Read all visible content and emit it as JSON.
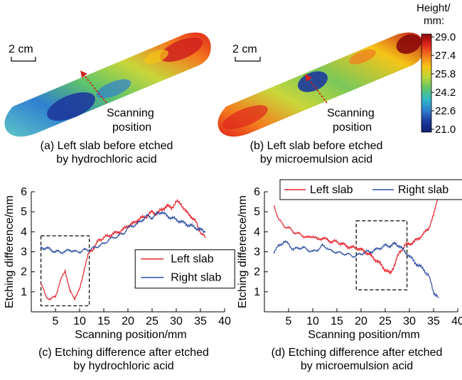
{
  "panels_top": {
    "a": {
      "scale_bar": "2 cm",
      "arrow_label_1": "Scanning",
      "arrow_label_2": "position",
      "caption_1": "(a) Left slab before etched",
      "caption_2": "by hydrochloric acid"
    },
    "b": {
      "scale_bar": "2 cm",
      "arrow_label_1": "Scanning",
      "arrow_label_2": "position",
      "caption_1": "(b) Left slab before etched",
      "caption_2": "by microemulsion acid"
    }
  },
  "colorbar": {
    "title_1": "Height/",
    "title_2": "mm:",
    "ticks": [
      "29.0",
      "27.4",
      "25.8",
      "24.2",
      "22.6",
      "21.0"
    ],
    "colors": [
      "#8b0a0a",
      "#e0261c",
      "#f47a1e",
      "#f5c518",
      "#b7d63a",
      "#5ec46a",
      "#30b6c8",
      "#2f7fd0",
      "#1d3a9c",
      "#0d1f74"
    ]
  },
  "colors": {
    "left_slab": "#e8212a",
    "right_slab": "#2e4fa3"
  },
  "chart_data": [
    {
      "type": "line",
      "caption_1": "(c) Etching difference after etched",
      "caption_2": "by hydrochloric acid",
      "xlabel": "Scanning position/mm",
      "ylabel": "Etching difference/mm",
      "xlim": [
        0,
        40
      ],
      "ylim": [
        0,
        6
      ],
      "xticks": [
        "5",
        "10",
        "15",
        "20",
        "25",
        "30",
        "35",
        "40"
      ],
      "yticks": [
        "1",
        "2",
        "3",
        "4",
        "5",
        "6"
      ],
      "legend_position": "center-right",
      "annotation": "dashed box 2–12 mm",
      "highlight_box": {
        "x": [
          2,
          12
        ],
        "y": [
          0.3,
          3.8
        ]
      },
      "series": [
        {
          "name": "Left slab",
          "x": [
            2,
            3,
            4,
            5,
            6,
            7,
            8,
            9,
            10,
            11,
            12,
            13,
            14,
            15,
            16,
            17,
            18,
            19,
            20,
            21,
            22,
            23,
            24,
            25,
            26,
            27,
            28,
            29,
            30,
            31,
            32,
            33,
            34,
            35,
            36
          ],
          "y": [
            1.4,
            0.8,
            0.6,
            0.8,
            1.5,
            2.1,
            1.0,
            0.7,
            1.1,
            2.2,
            3.0,
            3.2,
            3.6,
            3.7,
            3.8,
            3.9,
            4.0,
            4.1,
            4.3,
            4.4,
            4.6,
            4.7,
            4.8,
            5.0,
            4.9,
            5.1,
            5.3,
            5.2,
            5.5,
            5.4,
            5.0,
            4.8,
            4.5,
            4.0,
            3.7
          ]
        },
        {
          "name": "Right slab",
          "x": [
            2,
            3,
            4,
            5,
            6,
            7,
            8,
            9,
            10,
            11,
            12,
            13,
            14,
            15,
            16,
            17,
            18,
            19,
            20,
            21,
            22,
            23,
            24,
            25,
            26,
            27,
            28,
            29,
            30,
            31,
            32,
            33,
            34,
            35,
            36
          ],
          "y": [
            3.2,
            3.2,
            3.1,
            3.0,
            3.0,
            3.0,
            3.1,
            3.0,
            3.0,
            3.1,
            3.1,
            3.2,
            3.3,
            3.4,
            3.6,
            3.7,
            3.8,
            3.9,
            4.2,
            4.3,
            4.4,
            4.6,
            4.8,
            4.7,
            4.9,
            5.0,
            4.8,
            4.7,
            4.6,
            4.5,
            4.4,
            4.3,
            4.2,
            4.1,
            4.0
          ]
        }
      ]
    },
    {
      "type": "line",
      "caption_1": "(d) Etching difference after etched",
      "caption_2": "by microemulsion acid",
      "xlabel": "Scanning position/mm",
      "ylabel": "Etching difference/mm",
      "xlim": [
        0,
        40
      ],
      "ylim": [
        0,
        6
      ],
      "xticks": [
        "5",
        "10",
        "15",
        "20",
        "25",
        "30",
        "35",
        "40"
      ],
      "yticks": [
        "1",
        "2",
        "3",
        "4",
        "5",
        "6"
      ],
      "legend_position": "top",
      "annotation": "dashed box 19–30 mm",
      "highlight_box": {
        "x": [
          19,
          29.5
        ],
        "y": [
          1.1,
          4.55
        ]
      },
      "series": [
        {
          "name": "Left slab",
          "x": [
            2,
            3,
            4,
            5,
            6,
            7,
            8,
            9,
            10,
            11,
            12,
            13,
            14,
            15,
            16,
            17,
            18,
            19,
            20,
            21,
            22,
            23,
            24,
            25,
            26,
            27,
            28,
            29,
            30,
            31,
            32,
            33,
            34,
            35,
            36
          ],
          "y": [
            5.3,
            4.6,
            4.3,
            4.2,
            4.0,
            3.9,
            3.8,
            3.7,
            3.8,
            3.6,
            3.7,
            3.6,
            3.5,
            3.5,
            3.4,
            3.3,
            3.2,
            3.2,
            3.1,
            3.0,
            2.8,
            2.6,
            2.4,
            2.1,
            1.9,
            2.4,
            3.0,
            3.3,
            3.4,
            3.5,
            3.7,
            3.9,
            4.2,
            4.8,
            5.9
          ]
        },
        {
          "name": "Right slab",
          "x": [
            2,
            3,
            4,
            5,
            6,
            7,
            8,
            9,
            10,
            11,
            12,
            13,
            14,
            15,
            16,
            17,
            18,
            19,
            20,
            21,
            22,
            23,
            24,
            25,
            26,
            27,
            28,
            29,
            30,
            31,
            32,
            33,
            34,
            35,
            36
          ],
          "y": [
            3.0,
            3.3,
            3.5,
            3.4,
            3.1,
            3.2,
            3.2,
            3.1,
            3.0,
            3.1,
            3.3,
            3.2,
            3.0,
            3.0,
            2.9,
            2.9,
            2.8,
            2.8,
            2.9,
            3.0,
            3.0,
            3.1,
            3.2,
            3.3,
            3.3,
            3.4,
            3.3,
            3.0,
            2.8,
            2.5,
            2.3,
            2.1,
            1.8,
            1.0,
            0.7
          ]
        }
      ]
    }
  ]
}
